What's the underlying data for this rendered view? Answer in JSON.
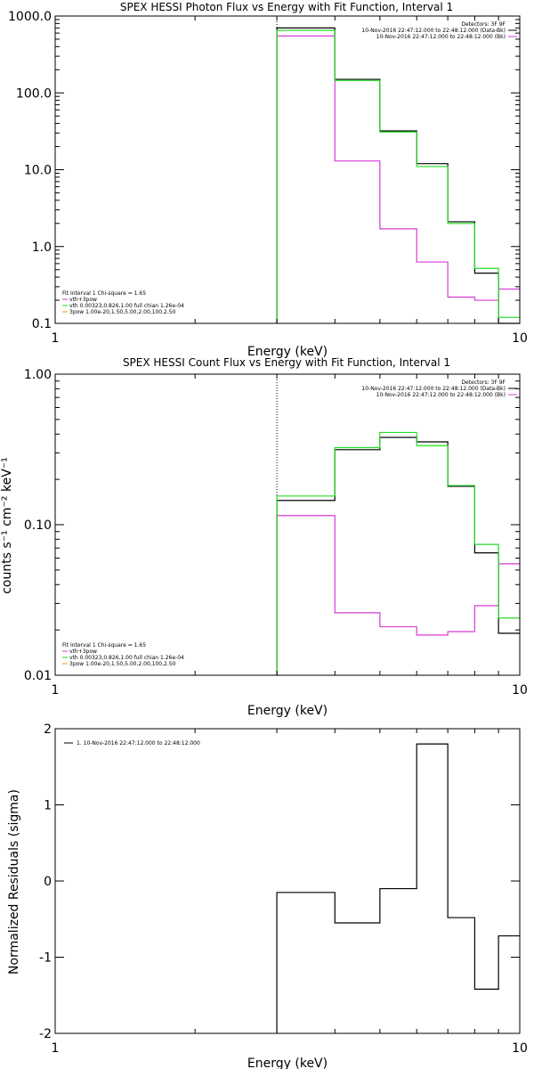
{
  "colors": {
    "black": "#000000",
    "magenta": "#d63bd6",
    "green": "#22dd22",
    "orange": "#e0a000"
  },
  "chart_data": [
    {
      "type": "line",
      "title": "SPEX HESSI Photon Flux vs Energy with Fit Function, Interval 1",
      "xlabel": "Energy (keV)",
      "ylabel": "",
      "xscale": "log",
      "yscale": "log",
      "xlim": [
        1,
        10
      ],
      "ylim": [
        0.1,
        1000
      ],
      "xticks": [
        "1",
        "10"
      ],
      "yticks": [
        "0.1",
        "1.0",
        "10.0",
        "100.0",
        "1000.0"
      ],
      "dotted_vline_x": 3,
      "bin_edges": [
        3,
        4,
        5,
        6,
        7,
        8,
        9,
        10
      ],
      "series": [
        {
          "values": [
            700,
            150,
            32,
            12,
            2.1,
            0.45,
            0.1
          ],
          "color": "black"
        },
        {
          "values": [
            550,
            13,
            1.7,
            0.63,
            0.22,
            0.2,
            0.28
          ],
          "color": "magenta"
        },
        {
          "values": [
            650,
            145,
            31,
            11,
            2.0,
            0.52,
            0.12
          ],
          "color": "green"
        }
      ],
      "legend_top_right": [
        {
          "text": "Detectors: 3F 9F",
          "color": ""
        },
        {
          "text": "10-Nov-2016 22:47:12.000 to 22:48:12.000 (Data-Bk)",
          "color": "black"
        },
        {
          "text": "10-Nov-2016 22:47:12.000 to 22:48:12.000 (Bk)",
          "color": "magenta"
        }
      ],
      "legend_bottom_left": [
        {
          "text": "Fit Interval 1   Chi-square = 1.65",
          "color": ""
        },
        {
          "text": "vth+3pow",
          "color": "magenta"
        },
        {
          "text": "vth 0.00323,0.826,1.00  full chian 1.26e-04",
          "color": "green"
        },
        {
          "text": "3pow 1.00e-20,1.50,5.00,2.00,100,2.50",
          "color": "orange"
        }
      ]
    },
    {
      "type": "line",
      "title": "SPEX HESSI Count Flux vs Energy with Fit Function, Interval 1",
      "xlabel": "Energy (keV)",
      "ylabel": "counts s⁻¹ cm⁻² keV⁻¹",
      "xscale": "log",
      "yscale": "log",
      "xlim": [
        1,
        10
      ],
      "ylim": [
        0.01,
        1.0
      ],
      "xticks": [
        "1",
        "10"
      ],
      "yticks": [
        "0.01",
        "0.10",
        "1.00"
      ],
      "dotted_vline_x": 3,
      "bin_edges": [
        3,
        4,
        5,
        6,
        7,
        8,
        9,
        10
      ],
      "series": [
        {
          "values": [
            0.145,
            0.315,
            0.38,
            0.355,
            0.18,
            0.065,
            0.019
          ],
          "color": "black"
        },
        {
          "values": [
            0.115,
            0.026,
            0.021,
            0.0185,
            0.0195,
            0.029,
            0.055
          ],
          "color": "magenta"
        },
        {
          "values": [
            0.155,
            0.325,
            0.41,
            0.335,
            0.182,
            0.074,
            0.024
          ],
          "color": "green"
        }
      ],
      "legend_top_right": [
        {
          "text": "Detectors: 3F 9F",
          "color": ""
        },
        {
          "text": "10-Nov-2016 22:47:12.000 to 22:48:12.000 (Data-Bk)",
          "color": "black"
        },
        {
          "text": "10-Nov-2016 22:47:12.000 to 22:48:12.000 (Bk)",
          "color": "magenta"
        }
      ],
      "legend_bottom_left": [
        {
          "text": "Fit Interval 1   Chi-square = 1.65",
          "color": ""
        },
        {
          "text": "vth+3pow",
          "color": "magenta"
        },
        {
          "text": "vth 0.00323,0.826,1.00  full chian 1.26e-04",
          "color": "green"
        },
        {
          "text": "3pow 1.00e-20,1.50,5.00,2.00,100,2.50",
          "color": "orange"
        }
      ]
    },
    {
      "type": "line",
      "title": "",
      "xlabel": "Energy (keV)",
      "ylabel": "Normalized Residuals (sigma)",
      "xscale": "log",
      "yscale": "linear",
      "xlim": [
        1,
        10
      ],
      "ylim": [
        -2,
        2
      ],
      "xticks": [
        "1",
        "10"
      ],
      "yticks": [
        "-2",
        "-1",
        "0",
        "1",
        "2"
      ],
      "bin_edges": [
        3,
        4,
        5,
        6,
        7,
        8,
        9,
        10
      ],
      "series": [
        {
          "values": [
            -0.15,
            -0.55,
            -0.1,
            1.8,
            -0.48,
            -1.42,
            -0.72
          ],
          "color": "black"
        }
      ],
      "legend_top_left": [
        {
          "text": "1. 10-Nov-2016 22:47:12.000 to 22:48:12.000",
          "color": "black"
        }
      ]
    }
  ]
}
